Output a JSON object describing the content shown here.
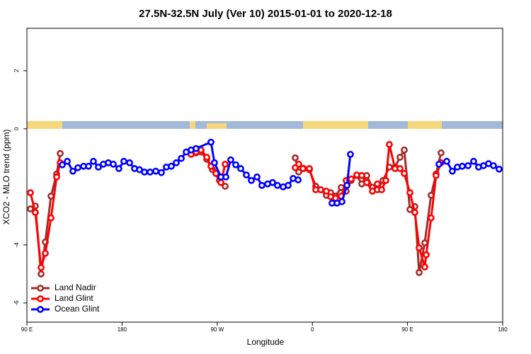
{
  "chart_data": {
    "type": "line",
    "title": "27.5N-32.5N July (Ver 10)   2015-01-01 to 2020-12-18",
    "x_label": "Longitude",
    "y_label": "XCO2 - MLO trend (ppm)",
    "xlim": [
      90,
      540
    ],
    "xticks": [
      {
        "value": 90,
        "label": "90 E"
      },
      180,
      {
        "value": 270,
        "label": "90 W"
      },
      {
        "value": 360,
        "label": "0"
      },
      {
        "value": 450,
        "label": "90 E"
      },
      {
        "value": 540,
        "label": "180"
      }
    ],
    "ylim": [
      -6.66,
      3.46
    ],
    "yticks": [
      -6,
      -4,
      0,
      2
    ],
    "legend": "bottom-left",
    "series": [
      {
        "name": "Land Nadir",
        "color": "#a52a2a",
        "x": [
          93.3,
          98.0,
          103.4,
          107.4,
          112.8,
          118.1,
          121.5,
          null,
          245.3,
          250.0,
          254.7,
          260.1,
          265.5,
          272.1,
          277.5,
          null,
          343.8,
          347.1,
          351.8,
          357.2,
          363.2,
          367.9,
          373.2,
          377.3,
          381.9,
          387.3,
          392.0,
          396.7,
          402.0,
          406.7,
          411.4,
          416.8,
          421.5,
          426.8,
          432.8,
          438.2,
          442.9,
          446.9,
          452.3,
          456.9,
          461.0,
          466.3,
          472.3,
          477.0,
          481.7
        ],
        "values": [
          -2.76,
          -2.66,
          -5.0,
          -3.9,
          -2.32,
          -1.56,
          -0.85,
          null,
          -0.8,
          -0.83,
          -0.8,
          -1.05,
          -1.41,
          -1.78,
          -1.98,
          null,
          -1.0,
          -1.49,
          -1.37,
          -1.41,
          -1.98,
          -2.1,
          -2.29,
          -2.2,
          -2.32,
          -2.02,
          -2.15,
          -1.78,
          -1.61,
          -1.9,
          -1.61,
          -2.02,
          -2.1,
          -1.78,
          -1.32,
          -1.32,
          -0.98,
          -0.73,
          -2.78,
          -2.68,
          -4.95,
          -3.93,
          -2.29,
          -1.56,
          -0.83
        ]
      },
      {
        "name": "Land Glint",
        "color": "#ff0000",
        "x": [
          93.3,
          98.0,
          103.4,
          107.4,
          112.8,
          118.1,
          121.5,
          null,
          245.3,
          250.0,
          254.7,
          260.1,
          264.1,
          268.8,
          273.5,
          277.5,
          null,
          343.8,
          347.1,
          351.1,
          357.2,
          363.2,
          367.9,
          373.2,
          377.3,
          381.9,
          387.3,
          392.0,
          396.7,
          402.0,
          406.7,
          411.4,
          416.8,
          421.5,
          425.5,
          429.5,
          432.8,
          438.2,
          442.9,
          446.9,
          452.3,
          456.9,
          461.0,
          466.3,
          467.7,
          472.3,
          477.0,
          481.7
        ],
        "values": [
          -2.2,
          -2.88,
          -4.78,
          -4.29,
          -3.07,
          -1.66,
          -1.17,
          null,
          -0.88,
          -0.8,
          -0.73,
          -0.98,
          -1.29,
          -1.54,
          -1.85,
          -1.22,
          null,
          -1.34,
          -1.22,
          -1.37,
          -1.37,
          -2.1,
          -2.1,
          -2.15,
          -2.34,
          -2.39,
          -2.32,
          -1.78,
          -1.73,
          -1.59,
          -1.61,
          -1.85,
          -2.15,
          -1.9,
          -2.1,
          -1.78,
          -0.54,
          -1.37,
          -1.37,
          -1.54,
          -2.2,
          -2.88,
          -4.1,
          -4.76,
          -4.34,
          -3.07,
          -1.61,
          -1.17
        ]
      },
      {
        "name": "Ocean Glint",
        "color": "#0000ff",
        "x": [
          123.5,
          128.2,
          133.5,
          138.2,
          143.6,
          148.3,
          152.9,
          157.6,
          162.3,
          167.0,
          171.7,
          177.0,
          181.7,
          187.1,
          191.8,
          196.5,
          201.2,
          206.5,
          211.9,
          217.2,
          221.9,
          226.6,
          231.3,
          236.0,
          240.7,
          245.3,
          250.0,
          264.1,
          267.4,
          273.5,
          278.2,
          282.8,
          287.5,
          292.2,
          297.6,
          302.3,
          307.6,
          312.3,
          317.7,
          322.4,
          327.0,
          332.4,
          337.1,
          341.8,
          346.5,
          null,
          378.6,
          383.3,
          388.0,
          392.7,
          396.0,
          null,
          479.7,
          487.1,
          492.4,
          497.1,
          501.8,
          507.2,
          512.5,
          517.2,
          521.9,
          526.6,
          531.3,
          536.6
        ],
        "values": [
          -1.24,
          -1.12,
          -1.46,
          -1.34,
          -1.29,
          -1.29,
          -1.12,
          -1.32,
          -1.22,
          -1.17,
          -1.22,
          -1.37,
          -1.12,
          -1.17,
          -1.37,
          -1.41,
          -1.49,
          -1.49,
          -1.46,
          -1.51,
          -1.32,
          -1.29,
          -1.17,
          -1.02,
          -0.8,
          -0.73,
          -0.68,
          -0.46,
          -1.17,
          -1.66,
          -1.66,
          -1.07,
          -1.24,
          -1.37,
          -1.59,
          -1.78,
          -1.66,
          -1.95,
          -1.9,
          -1.85,
          -1.95,
          -2.0,
          -1.95,
          -1.71,
          -1.76,
          null,
          -2.56,
          -2.56,
          -2.51,
          -1.95,
          -0.88,
          null,
          -1.22,
          -1.12,
          -1.46,
          -1.32,
          -1.29,
          -1.27,
          -1.12,
          -1.32,
          -1.27,
          -1.2,
          -1.27,
          -1.39
        ]
      }
    ]
  }
}
